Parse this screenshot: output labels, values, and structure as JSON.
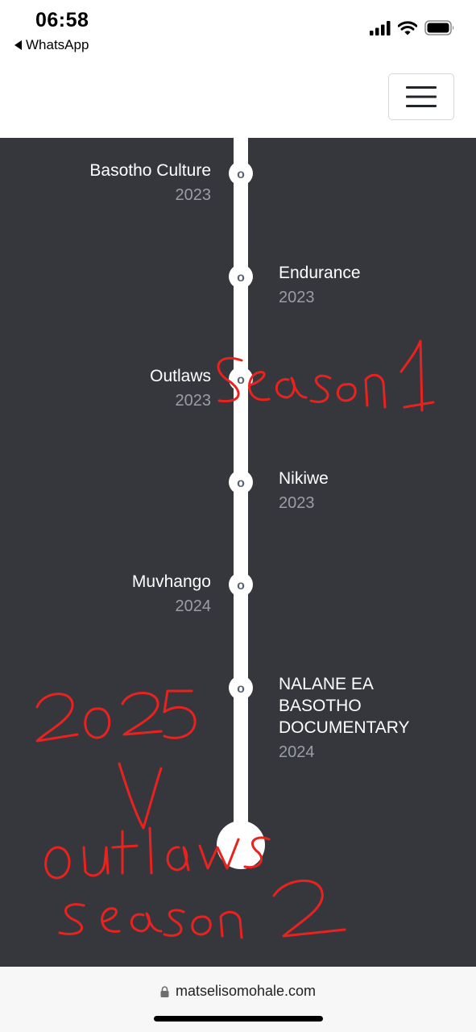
{
  "status_bar": {
    "time": "06:58",
    "back_app": "WhatsApp"
  },
  "browser": {
    "url": "matselisomohale.com"
  },
  "timeline": {
    "node_marker": "o",
    "items": [
      {
        "title": "Basotho Culture",
        "year": "2023",
        "side": "left"
      },
      {
        "title": "Endurance",
        "year": "2023",
        "side": "right"
      },
      {
        "title": "Outlaws",
        "year": "2023",
        "side": "left"
      },
      {
        "title": "Nikiwe",
        "year": "2023",
        "side": "right"
      },
      {
        "title": "Muvhango",
        "year": "2024",
        "side": "left"
      },
      {
        "title": "NALANE EA BASOTHO DOCUMENTARY",
        "year": "2024",
        "side": "right"
      }
    ]
  },
  "annotations": {
    "note_1": "Season 1",
    "note_2": "2025",
    "note_3": "outlaws",
    "note_4": "season2",
    "ink_color": "#e8231f"
  },
  "icons": {
    "back": "back-triangle-icon",
    "signal": "cellular-signal-icon",
    "wifi": "wifi-icon",
    "battery": "battery-icon",
    "menu": "hamburger-menu-icon",
    "lock": "lock-icon"
  }
}
